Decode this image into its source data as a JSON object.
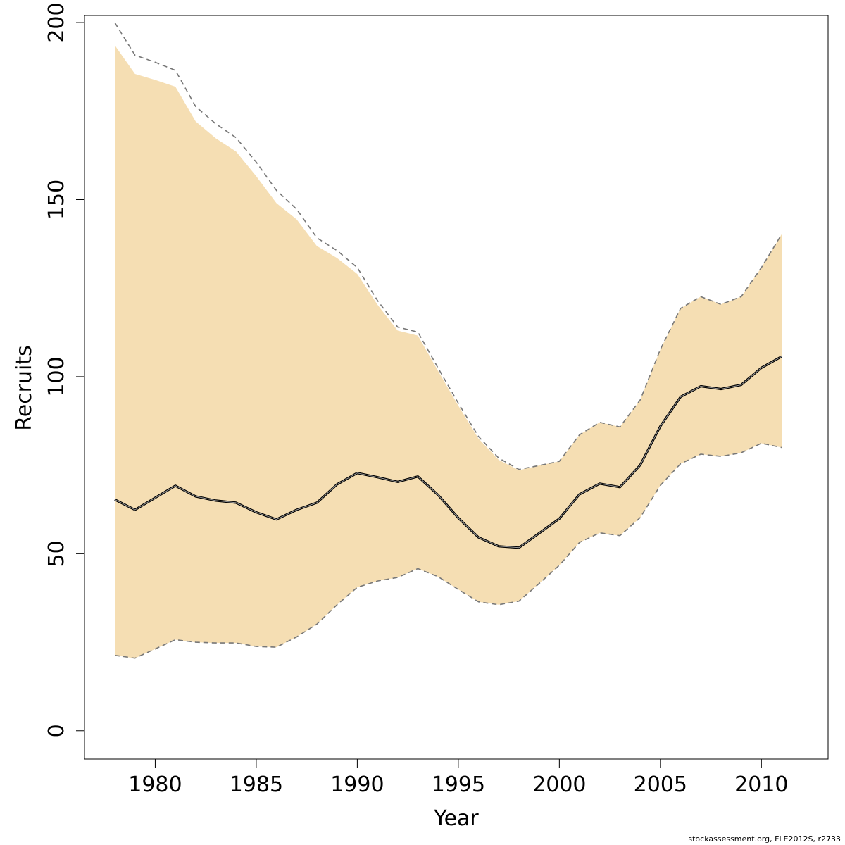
{
  "chart_data": {
    "type": "area",
    "xlabel": "Year",
    "ylabel": "Recruits",
    "xlim": [
      1976.5,
      2013.3
    ],
    "ylim": [
      -8,
      202
    ],
    "x_ticks": [
      1980,
      1985,
      1990,
      1995,
      2000,
      2005,
      2010
    ],
    "y_ticks": [
      0,
      50,
      100,
      150,
      200
    ],
    "grid": false,
    "x": [
      1978,
      1979,
      1980,
      1981,
      1982,
      1983,
      1984,
      1985,
      1986,
      1987,
      1988,
      1989,
      1990,
      1991,
      1992,
      1993,
      1994,
      1995,
      1996,
      1997,
      1998,
      1999,
      2000,
      2001,
      2002,
      2003,
      2004,
      2005,
      2006,
      2007,
      2008,
      2009,
      2010,
      2011
    ],
    "series": [
      {
        "role": "estimate",
        "values": [
          65.3,
          62.4,
          65.8,
          69.2,
          66.2,
          65,
          64.4,
          61.7,
          59.7,
          62.4,
          64.4,
          69.6,
          72.8,
          71.6,
          70.3,
          71.8,
          66.6,
          60.1,
          54.6,
          52.1,
          51.7,
          55.8,
          59.9,
          66.8,
          69.8,
          68.8,
          75,
          86,
          94.3,
          97.3,
          96.5,
          97.7,
          102.5,
          105.7
        ],
        "color": "#000000"
      },
      {
        "role": "upper_bound",
        "values": [
          200,
          190.8,
          188.8,
          186.5,
          176.3,
          171.4,
          167.5,
          160.6,
          152.6,
          147.3,
          139.2,
          135.6,
          130.8,
          121.5,
          114,
          112.6,
          102.4,
          92.5,
          83.1,
          77,
          73.8,
          74.9,
          76.1,
          83.6,
          87.1,
          85.8,
          93.4,
          107.7,
          119.3,
          122.6,
          120.4,
          122.6,
          130.8,
          140.2
        ],
        "color": "#777777"
      },
      {
        "role": "lower_bound",
        "values": [
          21.3,
          20.5,
          23.1,
          25.7,
          25,
          24.8,
          24.8,
          23.8,
          23.6,
          26.5,
          30.1,
          35.6,
          40.5,
          42.3,
          43.3,
          45.8,
          43.5,
          39.9,
          36.4,
          35.6,
          36.6,
          41.6,
          46.7,
          53.2,
          55.9,
          55.1,
          60.2,
          69.3,
          75.4,
          78.1,
          77.5,
          78.5,
          81.2,
          80
        ]
      }
    ],
    "band": {
      "upper": [
        193.6,
        185.5,
        183.8,
        181.9,
        172.1,
        167.3,
        163.6,
        156.6,
        149,
        144.4,
        136.9,
        133.5,
        129,
        120.3,
        113,
        111.6,
        101.6,
        91.8,
        82.5,
        76.5,
        73.6,
        74.9,
        76.1,
        83.6,
        87.1,
        85.8,
        93.4,
        107.7,
        119.3,
        122.6,
        120.4,
        122.6,
        130.8,
        140.2
      ],
      "lower": [
        21.3,
        20.5,
        23.1,
        25.7,
        25,
        24.8,
        24.8,
        23.8,
        23.6,
        26.5,
        30.1,
        35.6,
        40.5,
        42.3,
        43.3,
        45.8,
        43.5,
        39.9,
        36.4,
        35.6,
        36.6,
        41.6,
        46.7,
        53.2,
        55.9,
        55.1,
        60.2,
        69.3,
        75.4,
        78.1,
        77.5,
        78.5,
        81.2,
        80
      ],
      "color": "#f5deb3"
    }
  },
  "credit": "stockassessment.org, FLE2012S, r2733"
}
